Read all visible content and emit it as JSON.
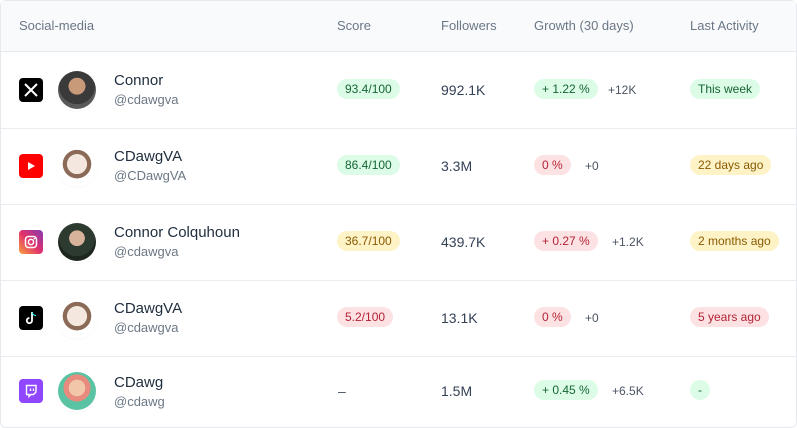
{
  "header": {
    "social_media": "Social-media",
    "score": "Score",
    "followers": "Followers",
    "growth": "Growth (30 days)",
    "last_activity": "Last Activity"
  },
  "rows": [
    {
      "platform_icon": "x-twitter-icon",
      "name": "Connor",
      "handle": "@cdawgva",
      "score": "93.4/100",
      "score_color": "green",
      "followers": "992.1K",
      "growth_pct": "+ 1.22 %",
      "growth_color": "green",
      "growth_abs": "+12K",
      "last_activity": "This week",
      "last_activity_color": "green"
    },
    {
      "platform_icon": "youtube-icon",
      "name": "CDawgVA",
      "handle": "@CDawgVA",
      "score": "86.4/100",
      "score_color": "green",
      "followers": "3.3M",
      "growth_pct": "0 %",
      "growth_color": "red",
      "growth_abs": "+0",
      "last_activity": "22 days ago",
      "last_activity_color": "yellow"
    },
    {
      "platform_icon": "instagram-icon",
      "name": "Connor Colquhoun",
      "handle": "@cdawgva",
      "score": "36.7/100",
      "score_color": "yellow",
      "followers": "439.7K",
      "growth_pct": "+ 0.27 %",
      "growth_color": "red",
      "growth_abs": "+1.2K",
      "last_activity": "2 months ago",
      "last_activity_color": "yellow"
    },
    {
      "platform_icon": "tiktok-icon",
      "name": "CDawgVA",
      "handle": "@cdawgva",
      "score": "5.2/100",
      "score_color": "red",
      "followers": "13.1K",
      "growth_pct": "0 %",
      "growth_color": "red",
      "growth_abs": "+0",
      "last_activity": "5 years ago",
      "last_activity_color": "red"
    },
    {
      "platform_icon": "twitch-icon",
      "name": "CDawg",
      "handle": "@cdawg",
      "score": "–",
      "score_color": "none",
      "followers": "1.5M",
      "growth_pct": "+ 0.45 %",
      "growth_color": "green",
      "growth_abs": "+6.5K",
      "last_activity": "-",
      "last_activity_color": "green"
    }
  ]
}
